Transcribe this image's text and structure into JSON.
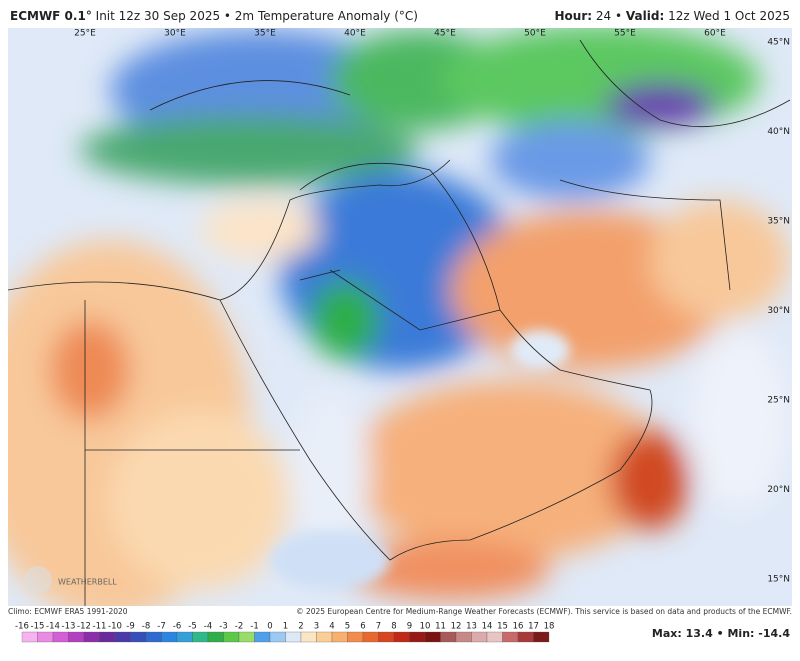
{
  "header": {
    "model": "ECMWF 0.1°",
    "info": "Init 12z 30 Sep 2025 • 2m Temperature Anomaly (°C)",
    "hour_label": "Hour:",
    "hour": "24",
    "sep": "•",
    "valid_label": "Valid:",
    "valid": "12z Wed 1 Oct 2025"
  },
  "map": {
    "lon_labels": [
      "25°E",
      "30°E",
      "35°E",
      "40°E",
      "45°E",
      "50°E",
      "55°E",
      "60°E"
    ],
    "lat_labels": [
      "45°N",
      "40°N",
      "35°N",
      "30°N",
      "25°N",
      "20°N",
      "15°N"
    ],
    "logo": "WEATHERBELL"
  },
  "footer": {
    "climo": "Climo: ECMWF ERA5 1991-2020",
    "copyright": "© 2025 European Centre for Medium-Range Weather Forecasts (ECMWF). This service is based on data and products of the ECMWF.",
    "max_label": "Max:",
    "max": 13.4,
    "sep": "•",
    "min_label": "Min:",
    "min": -14.4
  },
  "colorbar": {
    "ticks": [
      -16,
      -15,
      -14,
      -13,
      -12,
      -11,
      -10,
      -9,
      -8,
      -7,
      -6,
      -5,
      -4,
      -3,
      -2,
      -1,
      0,
      1,
      2,
      3,
      4,
      5,
      6,
      7,
      8,
      9,
      10,
      11,
      12,
      13,
      14,
      15,
      16,
      17,
      18
    ],
    "colors": [
      "#f7b3f0",
      "#e98ae3",
      "#d45fd4",
      "#b43fc0",
      "#8a2fa8",
      "#6a2a9c",
      "#4a3aa8",
      "#3550b8",
      "#2f6ad0",
      "#2b86e0",
      "#34a0d8",
      "#2fb88a",
      "#2fae4a",
      "#5cc84a",
      "#98dc6a",
      "#4fa0e8",
      "#9cc8f4",
      "#dce8f8",
      "#fbe6c4",
      "#fbcf94",
      "#f8b070",
      "#f28c4c",
      "#e86830",
      "#d84420",
      "#c02818",
      "#981a14",
      "#7a1410",
      "#a85a5a",
      "#c88888",
      "#dcaaaa",
      "#e8c4c4",
      "#c86a6a",
      "#a83a3a",
      "#7a1a1a"
    ]
  }
}
